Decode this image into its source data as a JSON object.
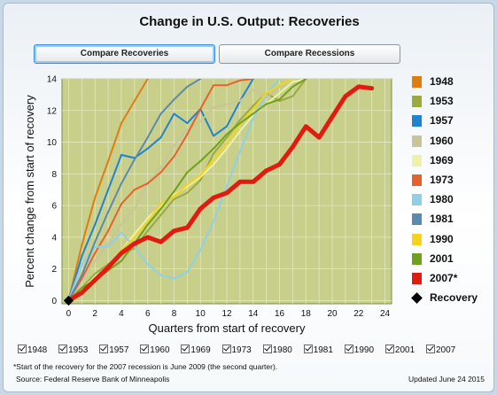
{
  "title": "Change in U.S. Output: Recoveries",
  "tabs": {
    "recoveries": "Compare Recoveries",
    "recessions": "Compare Recessions"
  },
  "legend_recovery_label": "Recovery",
  "checkbox_labels": [
    "1948",
    "1953",
    "1957",
    "1960",
    "1969",
    "1973",
    "1980",
    "1981",
    "1990",
    "2001",
    "2007"
  ],
  "footnote": "*Start of the recovery for the 2007 recession is June 2009 (the second quarter).",
  "source": "Source: Federal Reserve Bank of Minneapolis",
  "updated": "Updated June 24 2015",
  "chart_data": {
    "type": "line",
    "xlabel": "Quarters from start of recovery",
    "ylabel": "Percent change from start of recovery",
    "xlim": [
      -0.5,
      24.5
    ],
    "ylim": [
      -0.2,
      14
    ],
    "xticks": [
      0,
      2,
      4,
      6,
      8,
      10,
      12,
      14,
      16,
      18,
      20,
      22,
      24
    ],
    "yticks": [
      0,
      2,
      4,
      6,
      8,
      10,
      12,
      14
    ],
    "grid": true,
    "plot_background": "#c7cf8a",
    "legend_position": "right",
    "recovery_point": {
      "x": 0,
      "y": 0
    },
    "series": [
      {
        "name": "1948",
        "color": "#e07d10",
        "values": [
          0,
          3.5,
          6.5,
          8.8,
          11.2,
          12.6,
          14
        ]
      },
      {
        "name": "1953",
        "color": "#9aaa3c",
        "values": [
          0,
          0.8,
          1.7,
          2.3,
          2.9,
          3.3,
          4.4,
          5.4,
          6.4,
          6.8,
          7.6,
          9.3,
          10.3,
          11.4,
          12.3,
          13.1,
          12.6,
          12.9,
          14
        ]
      },
      {
        "name": "1957",
        "color": "#1f84d0",
        "values": [
          0,
          2.8,
          4.8,
          7.0,
          9.2,
          9.0,
          9.6,
          10.3,
          11.8,
          11.2,
          12.1,
          10.4,
          11.0,
          12.6,
          14
        ]
      },
      {
        "name": "1960",
        "color": "#c9c59a",
        "values": [
          0,
          1.3,
          2.5,
          3.6,
          4.8,
          5.8,
          7.4,
          8.4,
          9.8,
          10.8,
          11.3,
          12.2,
          12.4,
          12.6,
          13.3,
          12.8,
          13.5,
          13.7,
          14
        ]
      },
      {
        "name": "1969",
        "color": "#eef2a8",
        "values": [
          0,
          0.7,
          1.5,
          2.1,
          3.2,
          4.2,
          5.2,
          6.0,
          6.7,
          7.2,
          7.8,
          8.6,
          9.6,
          10.7,
          11.7,
          12.4,
          13.1,
          13.8,
          14
        ]
      },
      {
        "name": "1973",
        "color": "#e8612c",
        "values": [
          0,
          1.4,
          3.0,
          4.4,
          6.1,
          7.0,
          7.4,
          8.1,
          9.1,
          10.5,
          12.1,
          13.6,
          13.6,
          13.9,
          14
        ]
      },
      {
        "name": "1980",
        "color": "#8fd0e8",
        "values": [
          0,
          2.3,
          3.4,
          3.4,
          4.3,
          3.4,
          2.3,
          1.6,
          1.4,
          1.8,
          3.2,
          5.0,
          7.2,
          9.4,
          11.5,
          13.0,
          14
        ]
      },
      {
        "name": "1981",
        "color": "#5a8ab0",
        "values": [
          0,
          1.6,
          3.7,
          5.6,
          7.4,
          8.9,
          10.3,
          11.8,
          12.7,
          13.5,
          14
        ]
      },
      {
        "name": "1990",
        "color": "#f5d51c",
        "values": [
          0,
          0.6,
          1.3,
          2.1,
          3.2,
          4.0,
          5.0,
          6.1,
          6.6,
          7.3,
          7.9,
          8.9,
          9.9,
          11.1,
          12.1,
          13.1,
          13.6,
          14
        ]
      },
      {
        "name": "2001",
        "color": "#6fa11a",
        "values": [
          0,
          0.8,
          1.3,
          1.9,
          2.5,
          3.6,
          4.8,
          5.8,
          6.9,
          8.1,
          8.8,
          9.6,
          10.5,
          11.2,
          11.8,
          12.4,
          12.7,
          13.5,
          14
        ]
      },
      {
        "name": "2007*",
        "color": "#e01b10",
        "values": [
          0,
          0.5,
          1.3,
          2.1,
          3.0,
          3.6,
          4.0,
          3.7,
          4.4,
          4.6,
          5.8,
          6.5,
          6.8,
          7.5,
          7.5,
          8.2,
          8.6,
          9.7,
          11.0,
          10.3,
          11.6,
          12.9,
          13.5,
          13.4
        ]
      }
    ]
  }
}
